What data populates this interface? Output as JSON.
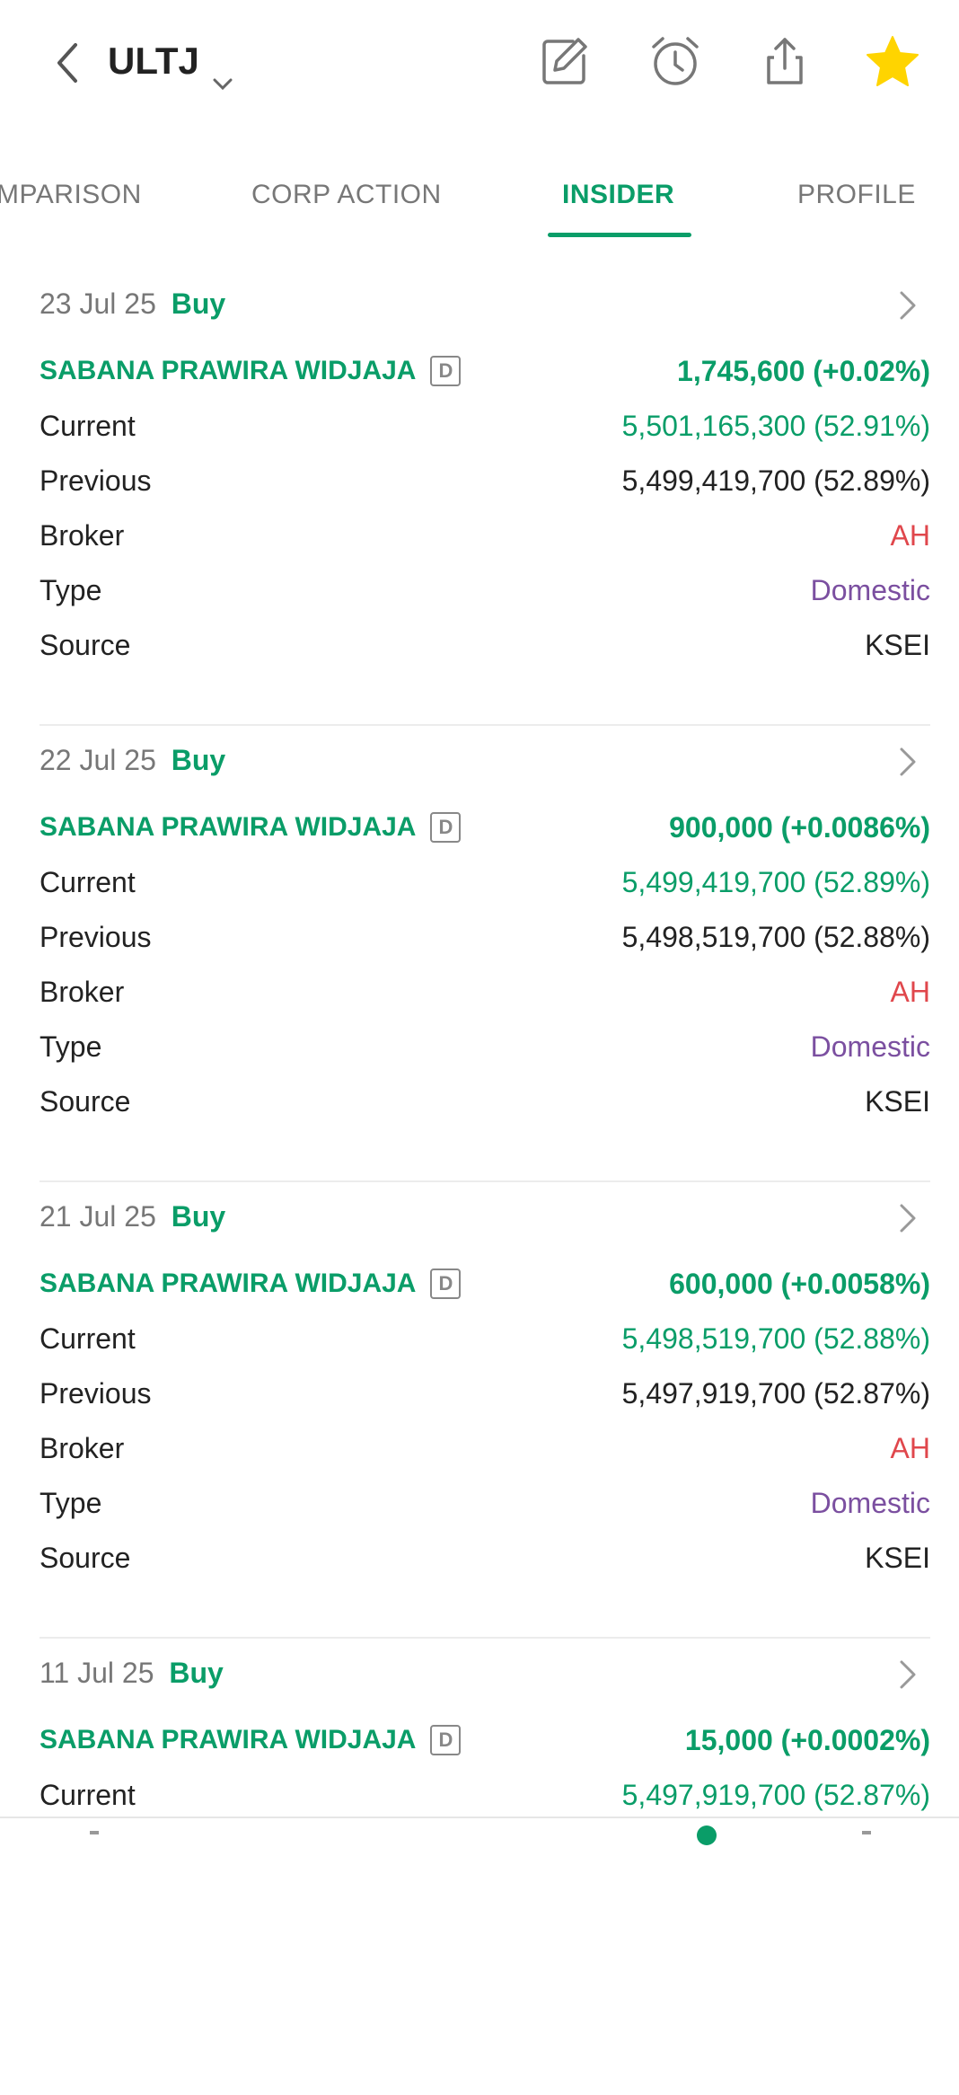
{
  "header": {
    "ticker": "ULTJ",
    "icons": [
      "back-icon",
      "chevron-down-icon",
      "edit-icon",
      "alarm-icon",
      "share-icon",
      "star-icon"
    ]
  },
  "tabs": [
    {
      "label": "MPARISON",
      "active": false
    },
    {
      "label": "CORP ACTION",
      "active": false
    },
    {
      "label": "INSIDER",
      "active": true
    },
    {
      "label": "PROFILE",
      "active": false
    }
  ],
  "colors": {
    "accent": "#0a9d68",
    "broker": "#e0474c",
    "type": "#7b4fa0",
    "star": "#ffd400"
  },
  "labels": {
    "current": "Current",
    "previous": "Previous",
    "broker": "Broker",
    "type": "Type",
    "source": "Source",
    "badge": "D"
  },
  "transactions": [
    {
      "date": "23 Jul 25",
      "action": "Buy",
      "name": "SABANA PRAWIRA WIDJAJA",
      "change": "1,745,600 (+0.02%)",
      "current": "5,501,165,300 (52.91%)",
      "previous": "5,499,419,700 (52.89%)",
      "broker": "AH",
      "type": "Domestic",
      "source": "KSEI"
    },
    {
      "date": "22 Jul 25",
      "action": "Buy",
      "name": "SABANA PRAWIRA WIDJAJA",
      "change": "900,000 (+0.0086%)",
      "current": "5,499,419,700 (52.89%)",
      "previous": "5,498,519,700 (52.88%)",
      "broker": "AH",
      "type": "Domestic",
      "source": "KSEI"
    },
    {
      "date": "21 Jul 25",
      "action": "Buy",
      "name": "SABANA PRAWIRA WIDJAJA",
      "change": "600,000 (+0.0058%)",
      "current": "5,498,519,700 (52.88%)",
      "previous": "5,497,919,700 (52.87%)",
      "broker": "AH",
      "type": "Domestic",
      "source": "KSEI"
    },
    {
      "date": "11 Jul 25",
      "action": "Buy",
      "name": "SABANA PRAWIRA WIDJAJA",
      "change": "15,000 (+0.0002%)",
      "current": "5,497,919,700 (52.87%)"
    }
  ]
}
